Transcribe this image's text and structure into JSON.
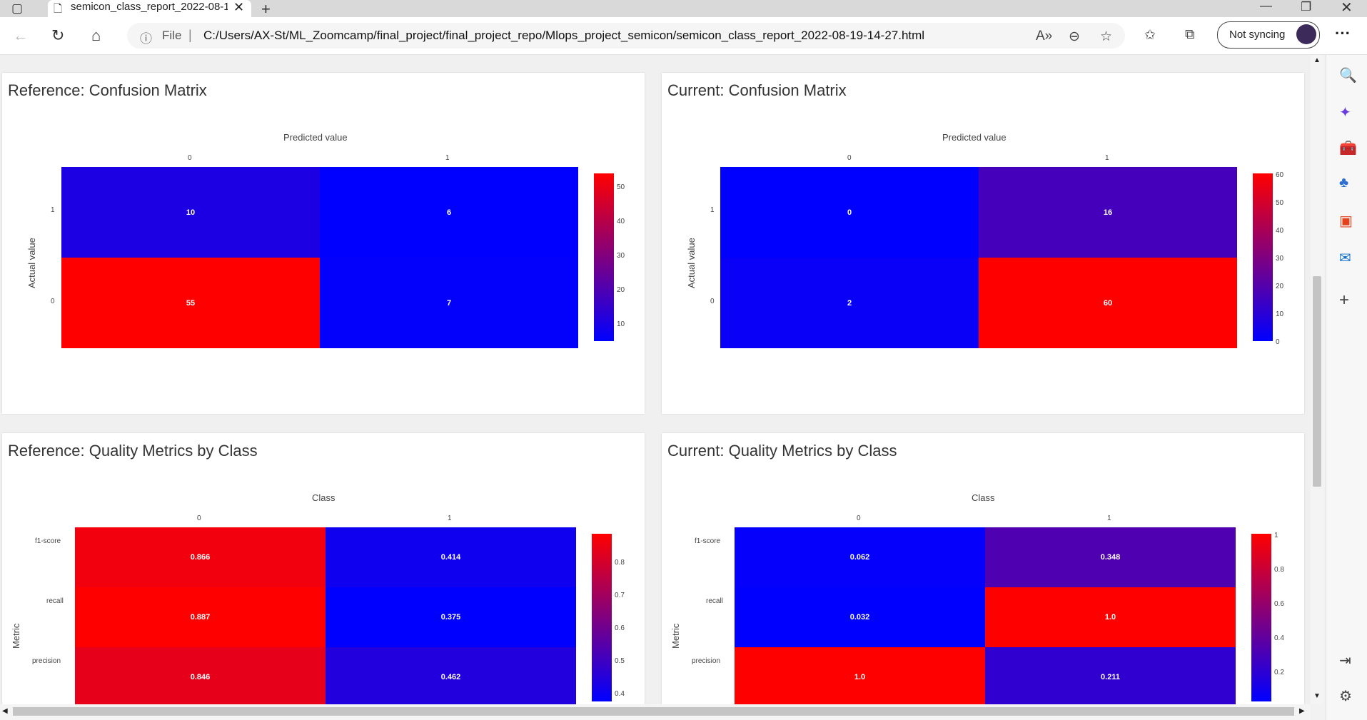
{
  "browser": {
    "tab_title": "semicon_class_report_2022-08-1",
    "tab_close": "✕",
    "url_file_label": "File",
    "url": "C:/Users/AX-St/ML_Zoomcamp/final_project/final_project_repo/Mlops_project_semicon/semicon_class_report_2022-08-19-14-27.html",
    "sync_label": "Not syncing"
  },
  "panels": {
    "ref_cm": {
      "title": "Reference: Confusion Matrix",
      "x_title": "Predicted value",
      "y_title": "Actual value",
      "x_ticks": [
        "0",
        "1"
      ],
      "y_ticks": [
        "1",
        "0"
      ],
      "cells": [
        "10",
        "6",
        "55",
        "7"
      ],
      "cbar_ticks": [
        "50",
        "40",
        "30",
        "20",
        "10"
      ]
    },
    "cur_cm": {
      "title": "Current: Confusion Matrix",
      "x_title": "Predicted value",
      "y_title": "Actual value",
      "x_ticks": [
        "0",
        "1"
      ],
      "y_ticks": [
        "1",
        "0"
      ],
      "cells": [
        "0",
        "16",
        "2",
        "60"
      ],
      "cbar_ticks": [
        "60",
        "50",
        "40",
        "30",
        "20",
        "10",
        "0"
      ]
    },
    "ref_qm": {
      "title": "Reference: Quality Metrics by Class",
      "x_title": "Class",
      "y_title": "Metric",
      "x_ticks": [
        "0",
        "1"
      ],
      "y_ticks": [
        "f1-score",
        "recall",
        "precision"
      ],
      "cells": [
        "0.866",
        "0.414",
        "0.887",
        "0.375",
        "0.846",
        "0.462"
      ],
      "cbar_ticks": [
        "0.8",
        "0.7",
        "0.6",
        "0.5",
        "0.4"
      ]
    },
    "cur_qm": {
      "title": "Current: Quality Metrics by Class",
      "x_title": "Class",
      "y_title": "Metric",
      "x_ticks": [
        "0",
        "1"
      ],
      "y_ticks": [
        "f1-score",
        "recall",
        "precision"
      ],
      "cells": [
        "0.062",
        "0.348",
        "0.032",
        "1.0",
        "1.0",
        "0.211"
      ],
      "cbar_ticks": [
        "1",
        "0.8",
        "0.6",
        "0.4",
        "0.2"
      ]
    }
  },
  "colors": {
    "high": "#ff0000",
    "low": "#0000ff"
  }
}
